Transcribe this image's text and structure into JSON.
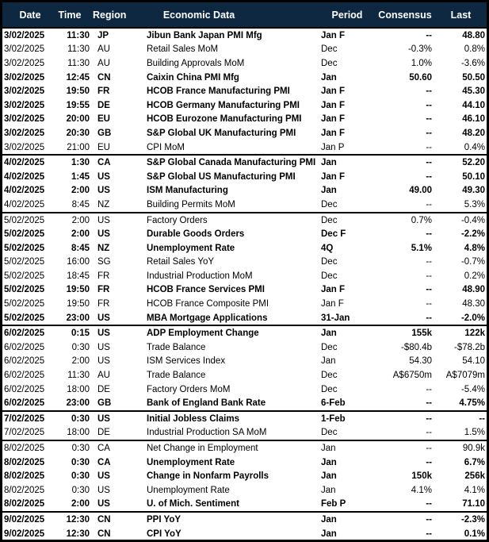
{
  "colors": {
    "header_bg": "#0E2841",
    "header_text": "#FFFFFF",
    "border": "#000000",
    "row_bg": "#FFFFFF",
    "text": "#000000"
  },
  "table": {
    "columns": {
      "date": "Date",
      "time": "Time",
      "region": "Region",
      "event": "Economic Data",
      "period": "Period",
      "consensus": "Consensus",
      "last": "Last"
    },
    "rows": [
      {
        "date": "3/02/2025",
        "time": "11:30",
        "region": "JP",
        "event": "Jibun Bank Japan PMI Mfg",
        "period": "Jan F",
        "consensus": "--",
        "last": "48.80",
        "bold": true,
        "new_group": false
      },
      {
        "date": "3/02/2025",
        "time": "11:30",
        "region": "AU",
        "event": "Retail Sales MoM",
        "period": "Dec",
        "consensus": "-0.3%",
        "last": "0.8%",
        "bold": false,
        "new_group": false
      },
      {
        "date": "3/02/2025",
        "time": "11:30",
        "region": "AU",
        "event": "Building Approvals MoM",
        "period": "Dec",
        "consensus": "1.0%",
        "last": "-3.6%",
        "bold": false,
        "new_group": false
      },
      {
        "date": "3/02/2025",
        "time": "12:45",
        "region": "CN",
        "event": "Caixin China PMI Mfg",
        "period": "Jan",
        "consensus": "50.60",
        "last": "50.50",
        "bold": true,
        "new_group": false
      },
      {
        "date": "3/02/2025",
        "time": "19:50",
        "region": "FR",
        "event": "HCOB France Manufacturing PMI",
        "period": "Jan F",
        "consensus": "--",
        "last": "45.30",
        "bold": true,
        "new_group": false
      },
      {
        "date": "3/02/2025",
        "time": "19:55",
        "region": "DE",
        "event": "HCOB Germany Manufacturing PMI",
        "period": "Jan F",
        "consensus": "--",
        "last": "44.10",
        "bold": true,
        "new_group": false
      },
      {
        "date": "3/02/2025",
        "time": "20:00",
        "region": "EU",
        "event": "HCOB Eurozone Manufacturing PMI",
        "period": "Jan F",
        "consensus": "--",
        "last": "46.10",
        "bold": true,
        "new_group": false
      },
      {
        "date": "3/02/2025",
        "time": "20:30",
        "region": "GB",
        "event": "S&P Global UK Manufacturing PMI",
        "period": "Jan F",
        "consensus": "--",
        "last": "48.20",
        "bold": true,
        "new_group": false
      },
      {
        "date": "3/02/2025",
        "time": "21:00",
        "region": "EU",
        "event": "CPI MoM",
        "period": "Jan P",
        "consensus": "--",
        "last": "0.4%",
        "bold": false,
        "new_group": false
      },
      {
        "date": "4/02/2025",
        "time": "1:30",
        "region": "CA",
        "event": "S&P Global Canada Manufacturing PMI",
        "period": "Jan",
        "consensus": "--",
        "last": "52.20",
        "bold": true,
        "new_group": true
      },
      {
        "date": "4/02/2025",
        "time": "1:45",
        "region": "US",
        "event": "S&P Global US Manufacturing PMI",
        "period": "Jan F",
        "consensus": "--",
        "last": "50.10",
        "bold": true,
        "new_group": false
      },
      {
        "date": "4/02/2025",
        "time": "2:00",
        "region": "US",
        "event": "ISM Manufacturing",
        "period": "Jan",
        "consensus": "49.00",
        "last": "49.30",
        "bold": true,
        "new_group": false
      },
      {
        "date": "4/02/2025",
        "time": "8:45",
        "region": "NZ",
        "event": "Building Permits MoM",
        "period": "Dec",
        "consensus": "--",
        "last": "5.3%",
        "bold": false,
        "new_group": false
      },
      {
        "date": "5/02/2025",
        "time": "2:00",
        "region": "US",
        "event": "Factory Orders",
        "period": "Dec",
        "consensus": "0.7%",
        "last": "-0.4%",
        "bold": false,
        "new_group": true
      },
      {
        "date": "5/02/2025",
        "time": "2:00",
        "region": "US",
        "event": "Durable Goods Orders",
        "period": "Dec F",
        "consensus": "--",
        "last": "-2.2%",
        "bold": true,
        "new_group": false
      },
      {
        "date": "5/02/2025",
        "time": "8:45",
        "region": "NZ",
        "event": "Unemployment Rate",
        "period": "4Q",
        "consensus": "5.1%",
        "last": "4.8%",
        "bold": true,
        "new_group": false
      },
      {
        "date": "5/02/2025",
        "time": "16:00",
        "region": "SG",
        "event": "Retail Sales YoY",
        "period": "Dec",
        "consensus": "--",
        "last": "-0.7%",
        "bold": false,
        "new_group": false
      },
      {
        "date": "5/02/2025",
        "time": "18:45",
        "region": "FR",
        "event": "Industrial Production MoM",
        "period": "Dec",
        "consensus": "--",
        "last": "0.2%",
        "bold": false,
        "new_group": false
      },
      {
        "date": "5/02/2025",
        "time": "19:50",
        "region": "FR",
        "event": "HCOB France Services PMI",
        "period": "Jan F",
        "consensus": "--",
        "last": "48.90",
        "bold": true,
        "new_group": false
      },
      {
        "date": "5/02/2025",
        "time": "19:50",
        "region": "FR",
        "event": "HCOB France Composite PMI",
        "period": "Jan F",
        "consensus": "--",
        "last": "48.30",
        "bold": false,
        "new_group": false
      },
      {
        "date": "5/02/2025",
        "time": "23:00",
        "region": "US",
        "event": "MBA Mortgage Applications",
        "period": "31-Jan",
        "consensus": "--",
        "last": "-2.0%",
        "bold": true,
        "new_group": false
      },
      {
        "date": "6/02/2025",
        "time": "0:15",
        "region": "US",
        "event": "ADP Employment Change",
        "period": "Jan",
        "consensus": "155k",
        "last": "122k",
        "bold": true,
        "new_group": true
      },
      {
        "date": "6/02/2025",
        "time": "0:30",
        "region": "US",
        "event": "Trade Balance",
        "period": "Dec",
        "consensus": "-$80.4b",
        "last": "-$78.2b",
        "bold": false,
        "new_group": false
      },
      {
        "date": "6/02/2025",
        "time": "2:00",
        "region": "US",
        "event": "ISM Services Index",
        "period": "Jan",
        "consensus": "54.30",
        "last": "54.10",
        "bold": false,
        "new_group": false
      },
      {
        "date": "6/02/2025",
        "time": "11:30",
        "region": "AU",
        "event": "Trade Balance",
        "period": "Dec",
        "consensus": "A$6750m",
        "last": "A$7079m",
        "bold": false,
        "new_group": false
      },
      {
        "date": "6/02/2025",
        "time": "18:00",
        "region": "DE",
        "event": "Factory Orders MoM",
        "period": "Dec",
        "consensus": "--",
        "last": "-5.4%",
        "bold": false,
        "new_group": false
      },
      {
        "date": "6/02/2025",
        "time": "23:00",
        "region": "GB",
        "event": "Bank of England Bank Rate",
        "period": "6-Feb",
        "consensus": "--",
        "last": "4.75%",
        "bold": true,
        "new_group": false
      },
      {
        "date": "7/02/2025",
        "time": "0:30",
        "region": "US",
        "event": "Initial Jobless Claims",
        "period": "1-Feb",
        "consensus": "--",
        "last": "--",
        "bold": true,
        "new_group": true
      },
      {
        "date": "7/02/2025",
        "time": "18:00",
        "region": "DE",
        "event": "Industrial Production SA MoM",
        "period": "Dec",
        "consensus": "--",
        "last": "1.5%",
        "bold": false,
        "new_group": false
      },
      {
        "date": "8/02/2025",
        "time": "0:30",
        "region": "CA",
        "event": "Net Change in Employment",
        "period": "Jan",
        "consensus": "--",
        "last": "90.9k",
        "bold": false,
        "new_group": true
      },
      {
        "date": "8/02/2025",
        "time": "0:30",
        "region": "CA",
        "event": "Unemployment Rate",
        "period": "Jan",
        "consensus": "--",
        "last": "6.7%",
        "bold": true,
        "new_group": false
      },
      {
        "date": "8/02/2025",
        "time": "0:30",
        "region": "US",
        "event": "Change in Nonfarm Payrolls",
        "period": "Jan",
        "consensus": "150k",
        "last": "256k",
        "bold": true,
        "new_group": false
      },
      {
        "date": "8/02/2025",
        "time": "0:30",
        "region": "US",
        "event": "Unemployment Rate",
        "period": "Jan",
        "consensus": "4.1%",
        "last": "4.1%",
        "bold": false,
        "new_group": false
      },
      {
        "date": "8/02/2025",
        "time": "2:00",
        "region": "US",
        "event": "U. of Mich. Sentiment",
        "period": "Feb P",
        "consensus": "--",
        "last": "71.10",
        "bold": true,
        "new_group": false
      },
      {
        "date": "9/02/2025",
        "time": "12:30",
        "region": "CN",
        "event": "PPI YoY",
        "period": "Jan",
        "consensus": "--",
        "last": "-2.3%",
        "bold": true,
        "new_group": true
      },
      {
        "date": "9/02/2025",
        "time": "12:30",
        "region": "CN",
        "event": "CPI YoY",
        "period": "Jan",
        "consensus": "--",
        "last": "0.1%",
        "bold": true,
        "new_group": false
      }
    ]
  }
}
